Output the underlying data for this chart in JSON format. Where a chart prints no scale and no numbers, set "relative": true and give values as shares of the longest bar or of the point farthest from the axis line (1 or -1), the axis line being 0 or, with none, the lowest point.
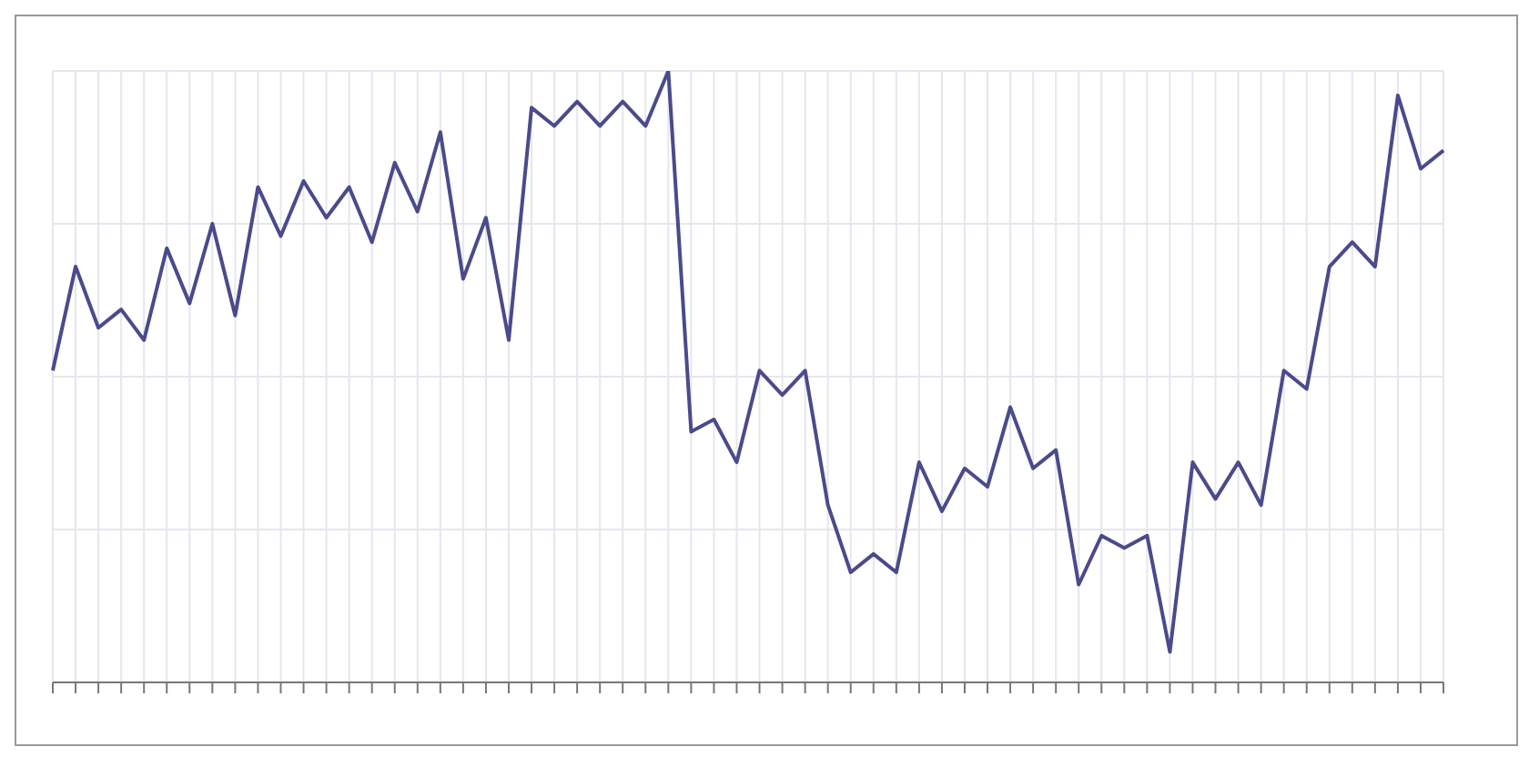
{
  "chart_data": {
    "type": "line",
    "relative": true,
    "grid": true,
    "legend": false,
    "marker": "none",
    "line_style": "solid",
    "categories": [
      null,
      null,
      null,
      null,
      null,
      null,
      null,
      null,
      null,
      null,
      null,
      null,
      null,
      null,
      null,
      null,
      null,
      null,
      null,
      null,
      null,
      null,
      null,
      null,
      null,
      null,
      null,
      null,
      null,
      null,
      null,
      null,
      null,
      null,
      null,
      null,
      null,
      null,
      null,
      null,
      null,
      null,
      null,
      null,
      null,
      null,
      null,
      null,
      null,
      null,
      null,
      null,
      null,
      null,
      null,
      null,
      null,
      null,
      null,
      null,
      null,
      null
    ],
    "series": [
      {
        "color": "#4a4a8c",
        "values": [
          0.51,
          0.68,
          0.58,
          0.61,
          0.56,
          0.71,
          0.62,
          0.75,
          0.6,
          0.81,
          0.73,
          0.82,
          0.76,
          0.81,
          0.72,
          0.85,
          0.77,
          0.9,
          0.66,
          0.76,
          0.56,
          0.94,
          0.91,
          0.95,
          0.91,
          0.95,
          0.91,
          1,
          0.41,
          0.43,
          0.36,
          0.51,
          0.47,
          0.51,
          0.29,
          0.18,
          0.21,
          0.18,
          0.36,
          0.28,
          0.35,
          0.32,
          0.45,
          0.35,
          0.38,
          0.16,
          0.24,
          0.22,
          0.24,
          0.05,
          0.36,
          0.3,
          0.36,
          0.29,
          0.51,
          0.48,
          0.68,
          0.72,
          0.68,
          0.96,
          0.84,
          0.87
        ]
      }
    ]
  }
}
